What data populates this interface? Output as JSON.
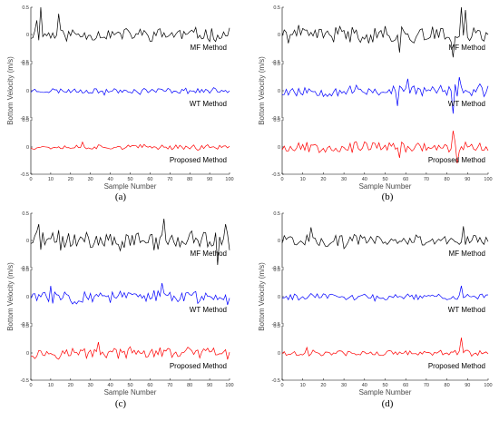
{
  "chart_data": [
    {
      "panel": "(a)",
      "type": "line",
      "xlabel": "Sample Number",
      "ylabel": "Bottom Velocity (m/s)",
      "xlim": [
        0,
        100
      ],
      "xticks": [
        "0",
        "10",
        "20",
        "30",
        "40",
        "50",
        "60",
        "70",
        "80",
        "90",
        "100"
      ],
      "ylim": [
        -0.5,
        0.5
      ],
      "yticks": [
        "-0.5",
        "0",
        "0.5"
      ],
      "series": [
        {
          "name": "MF Method",
          "color": "#000000",
          "seed": 11,
          "amp": 0.11,
          "spikes": [
            [
              5,
              0.5
            ],
            [
              3,
              0.26
            ],
            [
              14,
              0.38
            ]
          ]
        },
        {
          "name": "WT Method",
          "color": "#0000ff",
          "seed": 23,
          "amp": 0.045,
          "spikes": [
            [
              37,
              -0.08
            ],
            [
              55,
              -0.07
            ]
          ]
        },
        {
          "name": "Proposed Method",
          "color": "#ff0000",
          "seed": 37,
          "amp": 0.04,
          "spikes": [
            [
              26,
              0.09
            ],
            [
              84,
              -0.06
            ]
          ]
        }
      ]
    },
    {
      "panel": "(b)",
      "type": "line",
      "xlabel": "Sample Number",
      "ylabel": "Bottom Velocity (m/s)",
      "xlim": [
        0,
        100
      ],
      "xticks": [
        "0",
        "10",
        "20",
        "30",
        "40",
        "50",
        "60",
        "70",
        "80",
        "90",
        "100"
      ],
      "ylim": [
        -0.5,
        0.5
      ],
      "yticks": [
        "-0.5",
        "0",
        "0.5"
      ],
      "series": [
        {
          "name": "MF Method",
          "color": "#000000",
          "seed": 41,
          "amp": 0.14,
          "spikes": [
            [
              87,
              0.5
            ],
            [
              89,
              0.45
            ],
            [
              83,
              -0.42
            ],
            [
              57,
              -0.33
            ]
          ]
        },
        {
          "name": "WT Method",
          "color": "#0000ff",
          "seed": 53,
          "amp": 0.1,
          "spikes": [
            [
              56,
              -0.28
            ],
            [
              83,
              -0.42
            ],
            [
              86,
              0.25
            ],
            [
              61,
              0.22
            ]
          ]
        },
        {
          "name": "Proposed Method",
          "color": "#ff0000",
          "seed": 67,
          "amp": 0.09,
          "spikes": [
            [
              83,
              0.3
            ],
            [
              85,
              -0.3
            ],
            [
              57,
              -0.2
            ]
          ]
        }
      ]
    },
    {
      "panel": "(c)",
      "type": "line",
      "xlabel": "Sample Number",
      "ylabel": "Bottom Velocity (m/s)",
      "xlim": [
        0,
        100
      ],
      "xticks": [
        "0",
        "10",
        "20",
        "30",
        "40",
        "50",
        "60",
        "70",
        "80",
        "90",
        "100"
      ],
      "ylim": [
        -0.5,
        0.5
      ],
      "yticks": [
        "-0.5",
        "0",
        "0.5"
      ],
      "series": [
        {
          "name": "MF Method",
          "color": "#000000",
          "seed": 71,
          "amp": 0.16,
          "spikes": [
            [
              67,
              0.4
            ],
            [
              94,
              -0.45
            ],
            [
              4,
              0.3
            ],
            [
              98,
              0.3
            ]
          ]
        },
        {
          "name": "WT Method",
          "color": "#0000ff",
          "seed": 83,
          "amp": 0.11,
          "spikes": [
            [
              66,
              0.25
            ],
            [
              99,
              -0.15
            ],
            [
              10,
              0.2
            ]
          ]
        },
        {
          "name": "Proposed Method",
          "color": "#ff0000",
          "seed": 97,
          "amp": 0.09,
          "spikes": [
            [
              34,
              0.2
            ],
            [
              99,
              -0.12
            ]
          ]
        }
      ]
    },
    {
      "panel": "(d)",
      "type": "line",
      "xlabel": "Sample Number",
      "ylabel": "Bottom Velocity (m/s)",
      "xlim": [
        0,
        100
      ],
      "xticks": [
        "0",
        "10",
        "20",
        "30",
        "40",
        "50",
        "60",
        "70",
        "80",
        "90",
        "100"
      ],
      "ylim": [
        -0.5,
        0.5
      ],
      "yticks": [
        "-0.5",
        "0",
        "0.5"
      ],
      "series": [
        {
          "name": "MF Method",
          "color": "#000000",
          "seed": 101,
          "amp": 0.1,
          "spikes": [
            [
              14,
              0.24
            ],
            [
              88,
              0.26
            ],
            [
              30,
              -0.15
            ]
          ]
        },
        {
          "name": "WT Method",
          "color": "#0000ff",
          "seed": 113,
          "amp": 0.05,
          "spikes": [
            [
              87,
              0.2
            ],
            [
              45,
              -0.08
            ]
          ]
        },
        {
          "name": "Proposed Method",
          "color": "#ff0000",
          "seed": 127,
          "amp": 0.05,
          "spikes": [
            [
              87,
              0.28
            ],
            [
              12,
              0.1
            ]
          ]
        }
      ]
    }
  ]
}
